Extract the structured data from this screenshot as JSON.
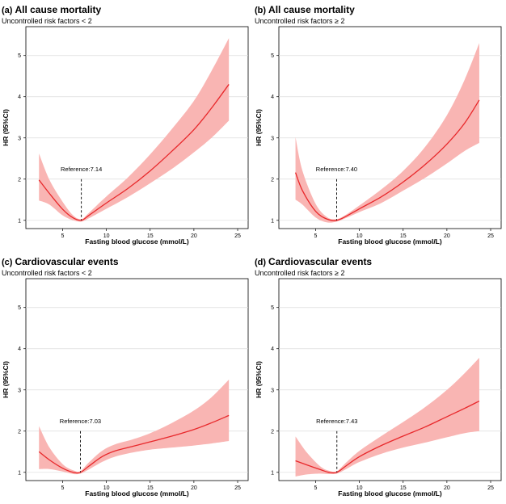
{
  "chart_data": [
    {
      "type": "line",
      "panel_label": "(a)",
      "title": "All cause mortality",
      "subtitle": "Uncontrolled risk factors < 2",
      "xlabel": "Fasting blood glucose (mmol/L)",
      "ylabel": "HR (95%CI)",
      "xlim": [
        0.8,
        26.2
      ],
      "ylim": [
        0.8,
        5.7
      ],
      "xticks": [
        5,
        10,
        15,
        20,
        25
      ],
      "yticks": [
        1,
        2,
        3,
        4,
        5
      ],
      "grid": "horizontal",
      "reference": {
        "value": 7.14,
        "label": "Reference:7.14"
      },
      "series": [
        {
          "name": "HR",
          "color": "#e8282b",
          "x": [
            2.3,
            3.5,
            5.0,
            6.2,
            7.14,
            8.0,
            10.0,
            12.5,
            15.0,
            17.5,
            20.0,
            22.0,
            24.0
          ],
          "y": [
            1.98,
            1.65,
            1.27,
            1.06,
            1.0,
            1.12,
            1.42,
            1.78,
            2.2,
            2.68,
            3.2,
            3.72,
            4.3
          ]
        },
        {
          "name": "95% CI lower",
          "color": "#f9b5b3",
          "x": [
            2.3,
            3.5,
            5.0,
            6.2,
            7.14,
            8.0,
            10.0,
            12.5,
            15.0,
            17.5,
            20.0,
            22.0,
            24.0
          ],
          "y": [
            1.48,
            1.38,
            1.12,
            1.0,
            0.97,
            1.05,
            1.28,
            1.57,
            1.9,
            2.25,
            2.65,
            3.0,
            3.42
          ]
        },
        {
          "name": "95% CI upper",
          "color": "#f9b5b3",
          "x": [
            2.3,
            3.5,
            5.0,
            6.2,
            7.14,
            8.0,
            10.0,
            12.5,
            15.0,
            17.5,
            20.0,
            22.0,
            24.0
          ],
          "y": [
            2.62,
            1.98,
            1.45,
            1.12,
            1.03,
            1.18,
            1.58,
            2.05,
            2.6,
            3.22,
            3.9,
            4.62,
            5.42
          ]
        }
      ]
    },
    {
      "type": "line",
      "panel_label": "(b)",
      "title": "All cause mortality",
      "subtitle": "Uncontrolled risk factors ≥ 2",
      "xlabel": "Fasting blood glucose (mmol/L)",
      "ylabel": "HR (95%CI)",
      "xlim": [
        0.8,
        26.2
      ],
      "ylim": [
        0.8,
        5.7
      ],
      "xticks": [
        5,
        10,
        15,
        20,
        25
      ],
      "yticks": [
        1,
        2,
        3,
        4,
        5
      ],
      "grid": "horizontal",
      "reference": {
        "value": 7.4,
        "label": "Reference:7.40"
      },
      "series": [
        {
          "name": "HR",
          "color": "#e8282b",
          "x": [
            2.7,
            3.5,
            5.0,
            6.3,
            7.4,
            8.5,
            10.0,
            12.5,
            15.0,
            17.5,
            20.0,
            22.0,
            23.7
          ],
          "y": [
            2.16,
            1.72,
            1.22,
            1.03,
            1.0,
            1.1,
            1.28,
            1.57,
            1.93,
            2.35,
            2.85,
            3.35,
            3.92
          ]
        },
        {
          "name": "95% CI lower",
          "color": "#f9b5b3",
          "x": [
            2.7,
            3.5,
            5.0,
            6.3,
            7.4,
            8.5,
            10.0,
            12.5,
            15.0,
            17.5,
            20.0,
            22.0,
            23.7
          ],
          "y": [
            1.5,
            1.38,
            1.07,
            0.95,
            0.97,
            1.06,
            1.2,
            1.42,
            1.72,
            2.03,
            2.38,
            2.68,
            2.88
          ]
        },
        {
          "name": "95% CI upper",
          "color": "#f9b5b3",
          "x": [
            2.7,
            3.5,
            5.0,
            6.3,
            7.4,
            8.5,
            10.0,
            12.5,
            15.0,
            17.5,
            20.0,
            22.0,
            23.7
          ],
          "y": [
            3.02,
            2.2,
            1.4,
            1.08,
            1.03,
            1.14,
            1.36,
            1.75,
            2.2,
            2.78,
            3.55,
            4.4,
            5.3
          ]
        }
      ]
    },
    {
      "type": "line",
      "panel_label": "(c)",
      "title": "Cardiovascular events",
      "subtitle": "Uncontrolled risk factors < 2",
      "xlabel": "Fasting blood glucose (mmol/L)",
      "ylabel": "HR (95%CI)",
      "xlim": [
        0.8,
        26.2
      ],
      "ylim": [
        0.8,
        5.7
      ],
      "xticks": [
        5,
        10,
        15,
        20,
        25
      ],
      "yticks": [
        1,
        2,
        3,
        4,
        5
      ],
      "grid": "horizontal",
      "reference": {
        "value": 7.03,
        "label": "Reference:7.03"
      },
      "series": [
        {
          "name": "HR",
          "color": "#e8282b",
          "x": [
            2.3,
            3.5,
            5.0,
            6.2,
            7.03,
            8.0,
            9.5,
            11.0,
            13.0,
            15.0,
            17.5,
            20.0,
            22.0,
            24.0
          ],
          "y": [
            1.5,
            1.3,
            1.1,
            1.0,
            1.0,
            1.15,
            1.38,
            1.52,
            1.63,
            1.74,
            1.88,
            2.04,
            2.2,
            2.38
          ]
        },
        {
          "name": "95% CI lower",
          "color": "#f9b5b3",
          "x": [
            2.3,
            3.5,
            5.0,
            6.2,
            7.03,
            8.0,
            9.5,
            11.0,
            13.0,
            15.0,
            17.5,
            20.0,
            22.0,
            24.0
          ],
          "y": [
            1.08,
            1.08,
            1.02,
            0.96,
            0.97,
            1.07,
            1.25,
            1.38,
            1.48,
            1.55,
            1.6,
            1.65,
            1.7,
            1.76
          ]
        },
        {
          "name": "95% CI upper",
          "color": "#f9b5b3",
          "x": [
            2.3,
            3.5,
            5.0,
            6.2,
            7.03,
            8.0,
            9.5,
            11.0,
            13.0,
            15.0,
            17.5,
            20.0,
            22.0,
            24.0
          ],
          "y": [
            2.12,
            1.6,
            1.2,
            1.05,
            1.03,
            1.24,
            1.52,
            1.68,
            1.8,
            1.95,
            2.2,
            2.5,
            2.82,
            3.25
          ]
        }
      ]
    },
    {
      "type": "line",
      "panel_label": "(d)",
      "title": "Cardiovascular events",
      "subtitle": "Uncontrolled risk factors ≥ 2",
      "xlabel": "Fasting blood glucose (mmol/L)",
      "ylabel": "HR (95%CI)",
      "xlim": [
        0.8,
        26.2
      ],
      "ylim": [
        0.8,
        5.7
      ],
      "xticks": [
        5,
        10,
        15,
        20,
        25
      ],
      "yticks": [
        1,
        2,
        3,
        4,
        5
      ],
      "grid": "horizontal",
      "reference": {
        "value": 7.43,
        "label": "Reference:7.43"
      },
      "series": [
        {
          "name": "HR",
          "color": "#e8282b",
          "x": [
            2.7,
            4.0,
            5.5,
            6.5,
            7.43,
            8.5,
            10.0,
            12.5,
            15.0,
            17.5,
            20.0,
            22.0,
            23.7
          ],
          "y": [
            1.28,
            1.18,
            1.07,
            1.0,
            1.0,
            1.16,
            1.38,
            1.65,
            1.88,
            2.1,
            2.35,
            2.55,
            2.73
          ]
        },
        {
          "name": "95% CI lower",
          "color": "#f9b5b3",
          "x": [
            2.7,
            4.0,
            5.5,
            6.5,
            7.43,
            8.5,
            10.0,
            12.5,
            15.0,
            17.5,
            20.0,
            22.0,
            23.7
          ],
          "y": [
            0.9,
            0.95,
            0.97,
            0.96,
            0.97,
            1.08,
            1.25,
            1.45,
            1.6,
            1.72,
            1.85,
            1.95,
            2.0
          ]
        },
        {
          "name": "95% CI upper",
          "color": "#f9b5b3",
          "x": [
            2.7,
            4.0,
            5.5,
            6.5,
            7.43,
            8.5,
            10.0,
            12.5,
            15.0,
            17.5,
            20.0,
            22.0,
            23.7
          ],
          "y": [
            1.87,
            1.48,
            1.15,
            1.04,
            1.03,
            1.24,
            1.52,
            1.88,
            2.22,
            2.58,
            3.0,
            3.4,
            3.78
          ]
        }
      ]
    }
  ]
}
